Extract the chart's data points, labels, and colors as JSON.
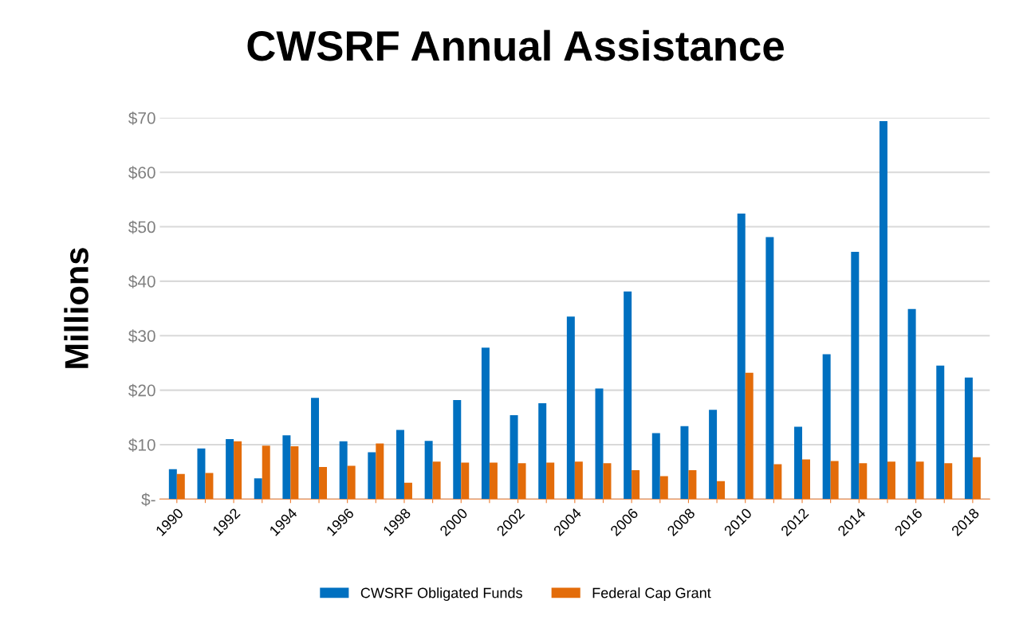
{
  "chart_data": {
    "type": "bar",
    "title": "CWSRF Annual Assistance",
    "ylabel": "Millions",
    "categories": [
      "1990",
      null,
      "1992",
      null,
      "1994",
      null,
      "1996",
      null,
      "1998",
      null,
      "2000",
      null,
      "2002",
      null,
      "2004",
      null,
      "2006",
      null,
      "2008",
      null,
      "2010",
      null,
      "2012",
      null,
      "2014",
      null,
      "2016",
      null,
      "2018"
    ],
    "series": [
      {
        "name": "CWSRF Obligated Funds",
        "color": "#0070c0",
        "values": [
          5.5,
          9.3,
          11,
          3.8,
          11.7,
          18.6,
          10.6,
          8.6,
          12.7,
          10.7,
          18.2,
          27.8,
          15.4,
          17.6,
          33.5,
          20.3,
          38.1,
          12.1,
          13.4,
          16.4,
          52.4,
          48.1,
          13.3,
          26.6,
          45.4,
          69.4,
          34.9,
          24.5,
          22.3
        ]
      },
      {
        "name": "Federal Cap Grant",
        "color": "#e36c0a",
        "values": [
          4.6,
          4.8,
          10.6,
          9.8,
          9.7,
          5.9,
          6.1,
          10.2,
          3.0,
          6.9,
          6.7,
          6.7,
          6.6,
          6.7,
          6.9,
          6.6,
          5.3,
          4.2,
          5.3,
          3.3,
          23.2,
          6.4,
          7.3,
          7.0,
          6.6,
          6.9,
          6.9,
          6.6,
          7.7
        ]
      }
    ],
    "ylim": [
      0,
      70
    ],
    "yticks": [
      {
        "value": 0,
        "label": "$-"
      },
      {
        "value": 10,
        "label": "$10"
      },
      {
        "value": 20,
        "label": "$20"
      },
      {
        "value": 30,
        "label": "$30"
      },
      {
        "value": 40,
        "label": "$40"
      },
      {
        "value": 50,
        "label": "$50"
      },
      {
        "value": 60,
        "label": "$60"
      },
      {
        "value": 70,
        "label": "$70"
      }
    ],
    "grid": "y",
    "legend": "bottom"
  }
}
